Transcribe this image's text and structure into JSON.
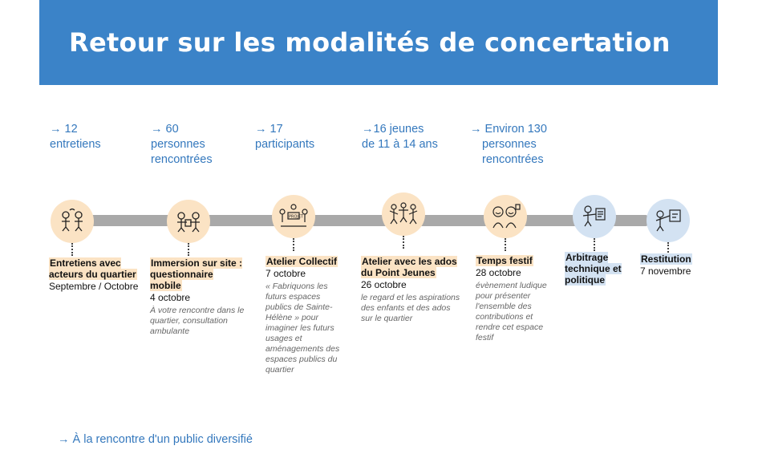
{
  "title": "Retour sur les modalités de concertation",
  "stats": [
    {
      "lines": [
        "→ 12",
        "entretiens"
      ]
    },
    {
      "lines": [
        "→ 60",
        "personnes",
        "rencontrées"
      ]
    },
    {
      "lines": [
        "→ 17",
        "participants"
      ]
    },
    {
      "lines": [
        "→16 jeunes",
        "de 11 à 14 ans"
      ]
    },
    {
      "lines": [
        "→ Environ 130",
        "personnes",
        "rencontrées"
      ]
    }
  ],
  "steps": [
    {
      "title": "Entretiens avec acteurs du quartier",
      "date": "Septembre / Octobre",
      "desc": "",
      "icon": "conversation-icon"
    },
    {
      "title": "Immersion sur site : questionnaire mobile",
      "date": "4 octobre",
      "desc": "À votre rencontre dans le quartier, consultation ambulante",
      "icon": "interview-icon"
    },
    {
      "title": "Atelier Collectif",
      "date": "7 octobre",
      "desc": "« Fabriquons les futurs espaces publics de Sainte-Hélène » pour imaginer les futurs usages et aménagements des espaces publics du quartier",
      "icon": "workshop-icon"
    },
    {
      "title": "Atelier avec les ados du Point Jeunes",
      "date": "26 octobre",
      "desc": "le regard et les aspirations des enfants et des ados sur le quartier",
      "icon": "youth-group-icon"
    },
    {
      "title": "Temps festif",
      "date": "28 octobre",
      "desc": "évènement ludique pour présenter l'ensemble des contributions et rendre cet espace festif",
      "icon": "festive-icon"
    },
    {
      "title": "Arbitrage technique et politique",
      "date": "",
      "desc": "",
      "icon": "arbitration-icon"
    },
    {
      "title": "Restitution",
      "date": "7 novembre",
      "desc": "",
      "icon": "presentation-icon"
    }
  ],
  "footer": "→ À la rencontre d'un public diversifié",
  "colors": {
    "banner": "#3b83c8",
    "accent_text": "#3478bd",
    "node_orange": "#fbe3c4",
    "node_blue": "#d3e2f2",
    "bar": "#a9a9a9"
  }
}
